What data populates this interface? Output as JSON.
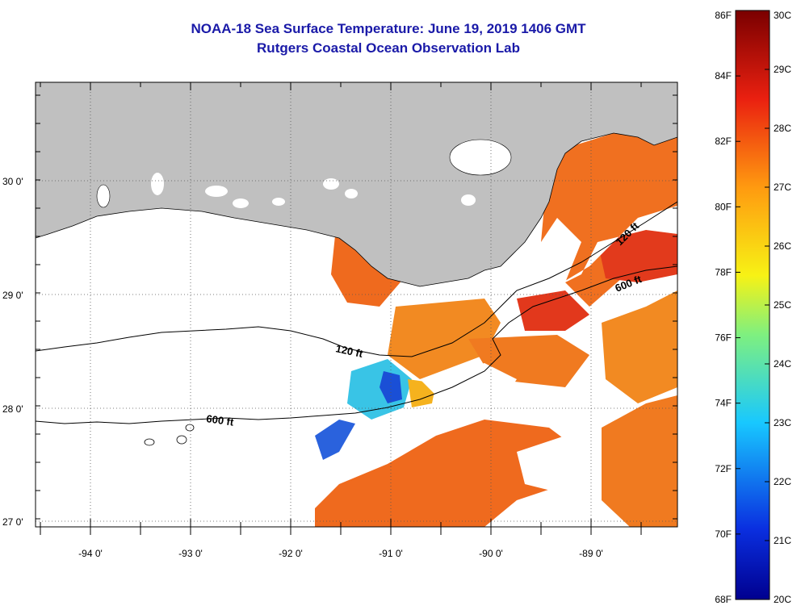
{
  "title": {
    "line1": "NOAA-18 Sea Surface Temperature:  June 19, 2019 1406 GMT",
    "line2": "Rutgers Coastal Ocean Observation Lab"
  },
  "colors": {
    "title": "#1a1aa8",
    "land": "#c0c0c0",
    "cloud": "#ffffff",
    "sst_warm": "#f26a1a",
    "sst_hot": "#e0281c",
    "sst_cool": "#39c4e6",
    "sst_cold": "#1a4fd6",
    "sst_mild": "#f5b21e"
  },
  "map": {
    "lat_labels": [
      "30 0'",
      "29 0'",
      "28 0'",
      "27 0'"
    ],
    "lon_labels": [
      "-94 0'",
      "-93 0'",
      "-92 0'",
      "-91 0'",
      "-90 0'",
      "-89 0'"
    ],
    "contours": [
      {
        "label": "120 ft"
      },
      {
        "label": "600 ft"
      },
      {
        "label": "120 ft"
      },
      {
        "label": "600 ft"
      }
    ]
  },
  "colorbar": {
    "fahrenheit": [
      "86F",
      "84F",
      "82F",
      "80F",
      "78F",
      "76F",
      "74F",
      "72F",
      "70F",
      "68F"
    ],
    "celsius": [
      "30C",
      "29C",
      "28C",
      "27C",
      "26C",
      "25C",
      "24C",
      "23C",
      "22C",
      "21C",
      "20C"
    ]
  }
}
